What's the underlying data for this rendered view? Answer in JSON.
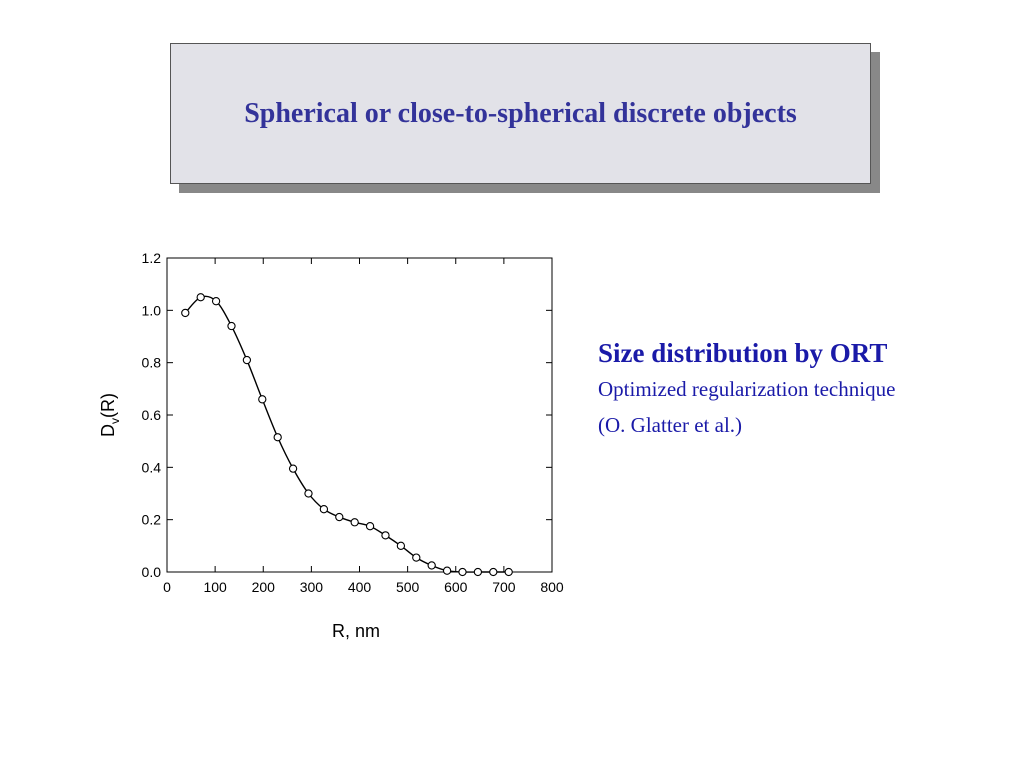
{
  "slide": {
    "title": "Spherical or close-to-spherical discrete objects",
    "side_heading": "Size distribution by ORT",
    "side_line1": "Optimized regularization technique",
    "side_line2": "(O. Glatter et al.)"
  },
  "colors": {
    "title_text": "#33339a",
    "side_text": "#1a1aa8",
    "title_box": "#e2e2e8",
    "shadow": "#888888"
  },
  "chart_data": {
    "type": "line",
    "title": "",
    "xlabel": "R, nm",
    "ylabel_main": "D",
    "ylabel_sub": "v",
    "ylabel_suffix": "(R)",
    "xlim": [
      0,
      800
    ],
    "ylim": [
      0,
      1.2
    ],
    "xticks": [
      "0",
      "100",
      "200",
      "300",
      "400",
      "500",
      "600",
      "700",
      "800"
    ],
    "yticks": [
      "0.0",
      "0.2",
      "0.4",
      "0.6",
      "0.8",
      "1.0",
      "1.2"
    ],
    "grid": false,
    "series": [
      {
        "x": [
          38,
          70,
          102,
          134,
          166,
          198,
          230,
          262,
          294,
          326,
          358,
          390,
          422,
          454,
          486,
          518,
          550,
          582,
          614,
          646,
          678,
          710
        ],
        "y": [
          0.99,
          1.05,
          1.035,
          0.94,
          0.81,
          0.66,
          0.515,
          0.395,
          0.3,
          0.24,
          0.21,
          0.19,
          0.175,
          0.14,
          0.1,
          0.055,
          0.025,
          0.005,
          0.0,
          0.0,
          0.0,
          0.0
        ],
        "marker": "open-circle"
      }
    ]
  }
}
